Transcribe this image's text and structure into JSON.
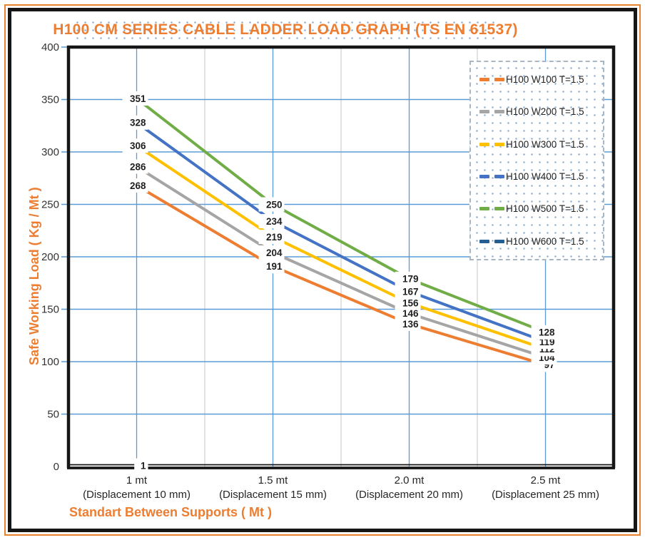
{
  "chart_data": {
    "type": "line",
    "title": "H100 CM SERIES CABLE LADDER LOAD GRAPH (TS EN 61537)",
    "xlabel": "Standart Between Supports ( Mt )",
    "ylabel": "Safe Working Load ( Kg / Mt )",
    "ylim": [
      0,
      400
    ],
    "yticks": [
      400,
      350,
      300,
      250,
      200,
      150,
      100,
      50,
      0
    ],
    "grid": "horizontal major gridlines + vertical lines at category centers and boundaries",
    "legend_position": "top-right overlay inside plot",
    "categories": [
      {
        "line1": "1 mt",
        "line2": "(Displacement 10 mm)"
      },
      {
        "line1": "1.5 mt",
        "line2": "(Displacement 15 mm)"
      },
      {
        "line1": "2.0 mt",
        "line2": "(Displacement 20 mm)"
      },
      {
        "line1": "2.5 mt",
        "line2": "(Displacement 25 mm)"
      }
    ],
    "series": [
      {
        "name": "H100 W100 T=1.5",
        "color": "#ED7D31",
        "values": [
          268,
          191,
          136,
          97
        ]
      },
      {
        "name": "H100 W200 T=1.5",
        "color": "#A5A5A5",
        "values": [
          286,
          204,
          146,
          104
        ]
      },
      {
        "name": "H100 W300 T=1.5",
        "color": "#FFC000",
        "values": [
          306,
          219,
          156,
          112
        ]
      },
      {
        "name": "H100 W400 T=1.5",
        "color": "#4472C4",
        "values": [
          328,
          234,
          167,
          119
        ]
      },
      {
        "name": "H100 W500 T=1.5",
        "color": "#70AD47",
        "values": [
          351,
          250,
          179,
          128
        ]
      },
      {
        "name": "H100 W600 T=1.5",
        "color": "#255E91",
        "values": [
          1,
          null,
          null,
          null
        ]
      }
    ]
  },
  "colors": {
    "accent_orange": "#ED7D31",
    "gridline_blue": "#5B9BD5",
    "boundary_gray": "#D9D9D9",
    "axis_black": "#161616",
    "tick_label": "#333333",
    "data_label": "#1F1F1F",
    "frame_orange": "#E8832F",
    "frame_black": "#161616"
  }
}
